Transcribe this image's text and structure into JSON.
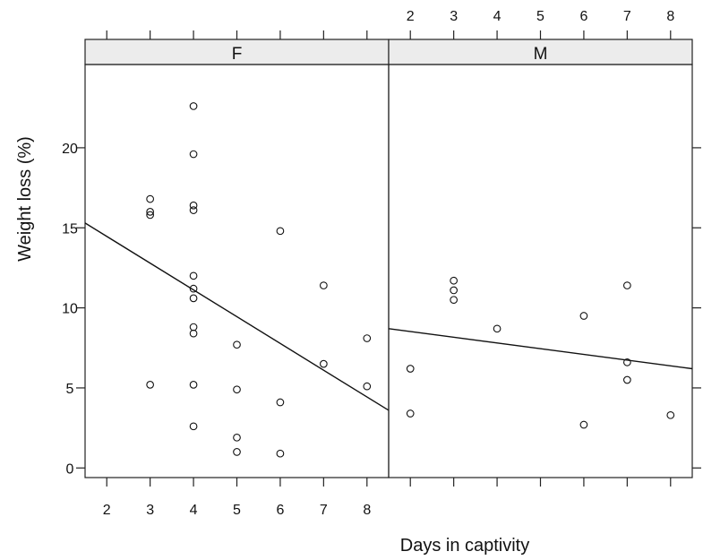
{
  "chart_data": {
    "type": "scatter",
    "xlabel": "Days in captivity",
    "ylabel": "Weight loss (%)",
    "x_ticks": [
      2,
      3,
      4,
      5,
      6,
      7,
      8
    ],
    "y_ticks": [
      0,
      5,
      10,
      15,
      20
    ],
    "xlim": [
      1.5,
      8.5
    ],
    "ylim": [
      -0.6,
      25.2
    ],
    "panels": [
      {
        "strip": "F",
        "points": [
          {
            "x": 3,
            "y": 16.8
          },
          {
            "x": 3,
            "y": 16.0
          },
          {
            "x": 3,
            "y": 15.8
          },
          {
            "x": 3,
            "y": 5.2
          },
          {
            "x": 4,
            "y": 22.6
          },
          {
            "x": 4,
            "y": 19.6
          },
          {
            "x": 4,
            "y": 16.4
          },
          {
            "x": 4,
            "y": 16.1
          },
          {
            "x": 4,
            "y": 12.0
          },
          {
            "x": 4,
            "y": 11.2
          },
          {
            "x": 4,
            "y": 10.6
          },
          {
            "x": 4,
            "y": 8.8
          },
          {
            "x": 4,
            "y": 8.4
          },
          {
            "x": 4,
            "y": 5.2
          },
          {
            "x": 4,
            "y": 2.6
          },
          {
            "x": 5,
            "y": 7.7
          },
          {
            "x": 5,
            "y": 4.9
          },
          {
            "x": 5,
            "y": 1.9
          },
          {
            "x": 5,
            "y": 1.0
          },
          {
            "x": 6,
            "y": 14.8
          },
          {
            "x": 6,
            "y": 4.1
          },
          {
            "x": 6,
            "y": 0.9
          },
          {
            "x": 7,
            "y": 11.4
          },
          {
            "x": 7,
            "y": 6.5
          },
          {
            "x": 8,
            "y": 8.1
          },
          {
            "x": 8,
            "y": 5.1
          }
        ],
        "fit_line": {
          "x": [
            1.5,
            8.5
          ],
          "y": [
            15.3,
            3.6
          ]
        }
      },
      {
        "strip": "M",
        "points": [
          {
            "x": 2,
            "y": 6.2
          },
          {
            "x": 2,
            "y": 3.4
          },
          {
            "x": 3,
            "y": 11.7
          },
          {
            "x": 3,
            "y": 11.1
          },
          {
            "x": 3,
            "y": 10.5
          },
          {
            "x": 4,
            "y": 8.7
          },
          {
            "x": 6,
            "y": 9.5
          },
          {
            "x": 6,
            "y": 2.7
          },
          {
            "x": 7,
            "y": 11.4
          },
          {
            "x": 7,
            "y": 6.6
          },
          {
            "x": 7,
            "y": 5.5
          },
          {
            "x": 8,
            "y": 3.3
          }
        ],
        "fit_line": {
          "x": [
            1.5,
            8.5
          ],
          "y": [
            8.7,
            6.2
          ]
        }
      }
    ],
    "grid": false,
    "legend": "none"
  }
}
